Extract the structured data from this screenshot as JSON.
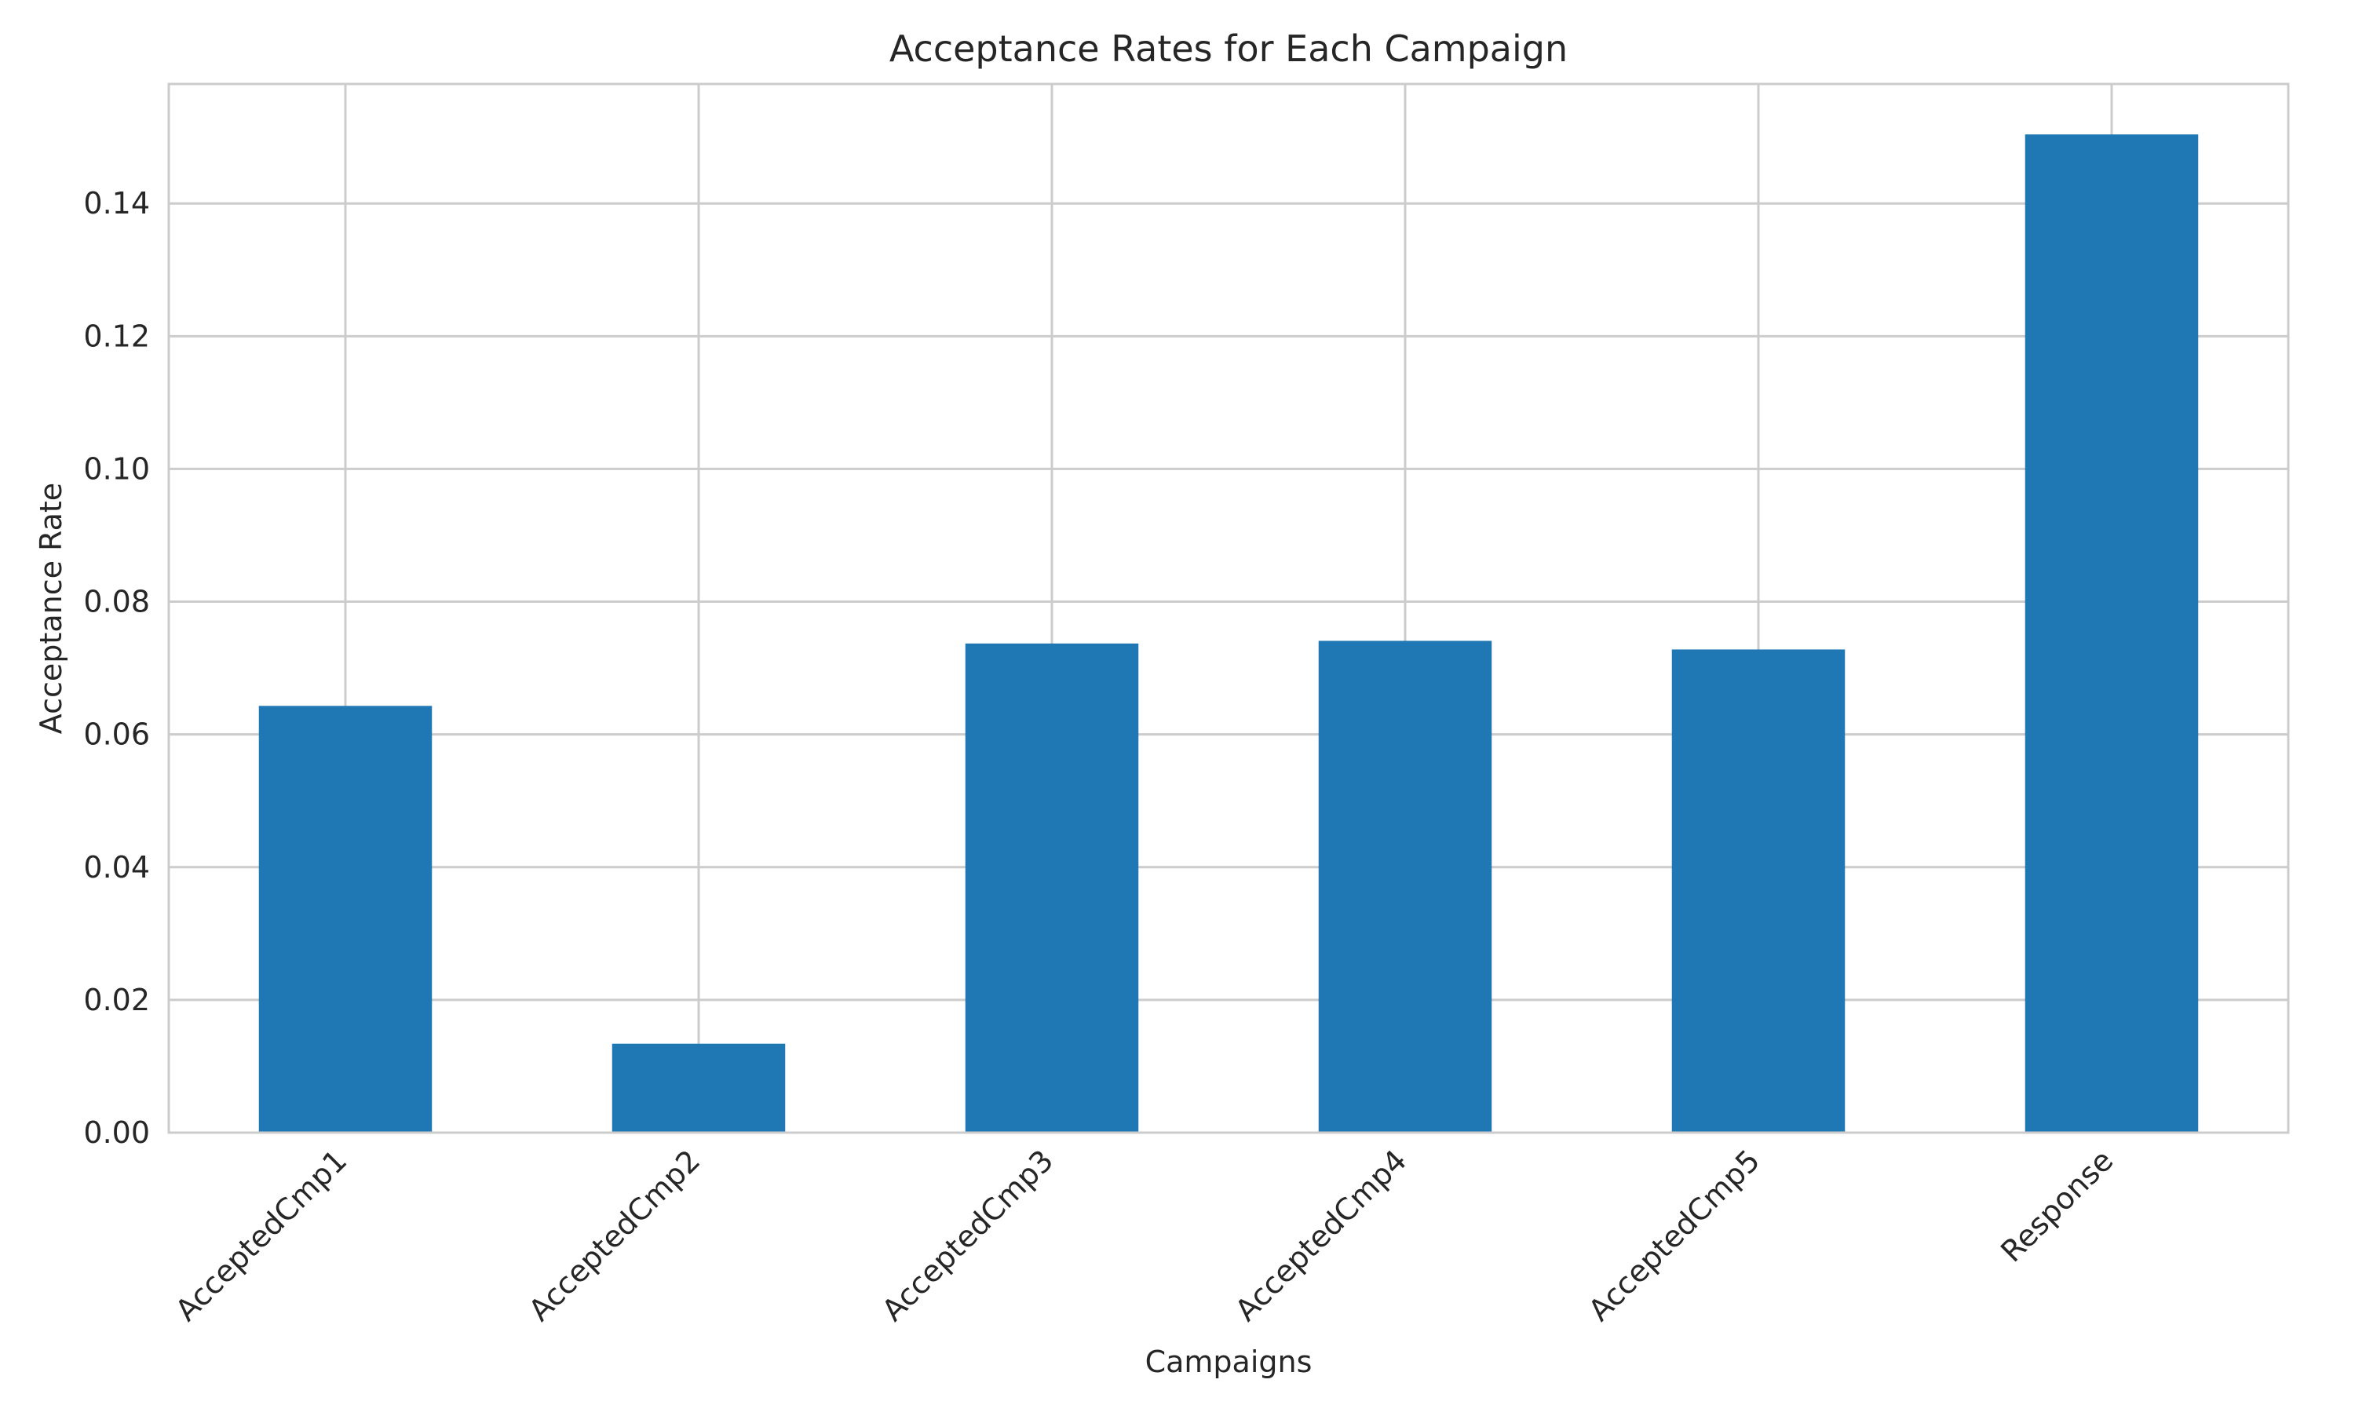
{
  "chart_data": {
    "type": "bar",
    "title": "Acceptance Rates for Each Campaign",
    "xlabel": "Campaigns",
    "ylabel": "Acceptance Rate",
    "categories": [
      "AcceptedCmp1",
      "AcceptedCmp2",
      "AcceptedCmp3",
      "AcceptedCmp4",
      "AcceptedCmp5",
      "Response"
    ],
    "values": [
      0.0643,
      0.0134,
      0.0737,
      0.0741,
      0.0728,
      0.1504
    ],
    "ylim": [
      0,
      0.158
    ],
    "yticks": [
      "0.00",
      "0.02",
      "0.04",
      "0.06",
      "0.08",
      "0.10",
      "0.12",
      "0.14"
    ],
    "grid": true,
    "legend": "none",
    "bar_color": "#1f77b4",
    "grid_color": "#cccccc",
    "axis_color": "#cccccc",
    "text_color": "#262626"
  }
}
